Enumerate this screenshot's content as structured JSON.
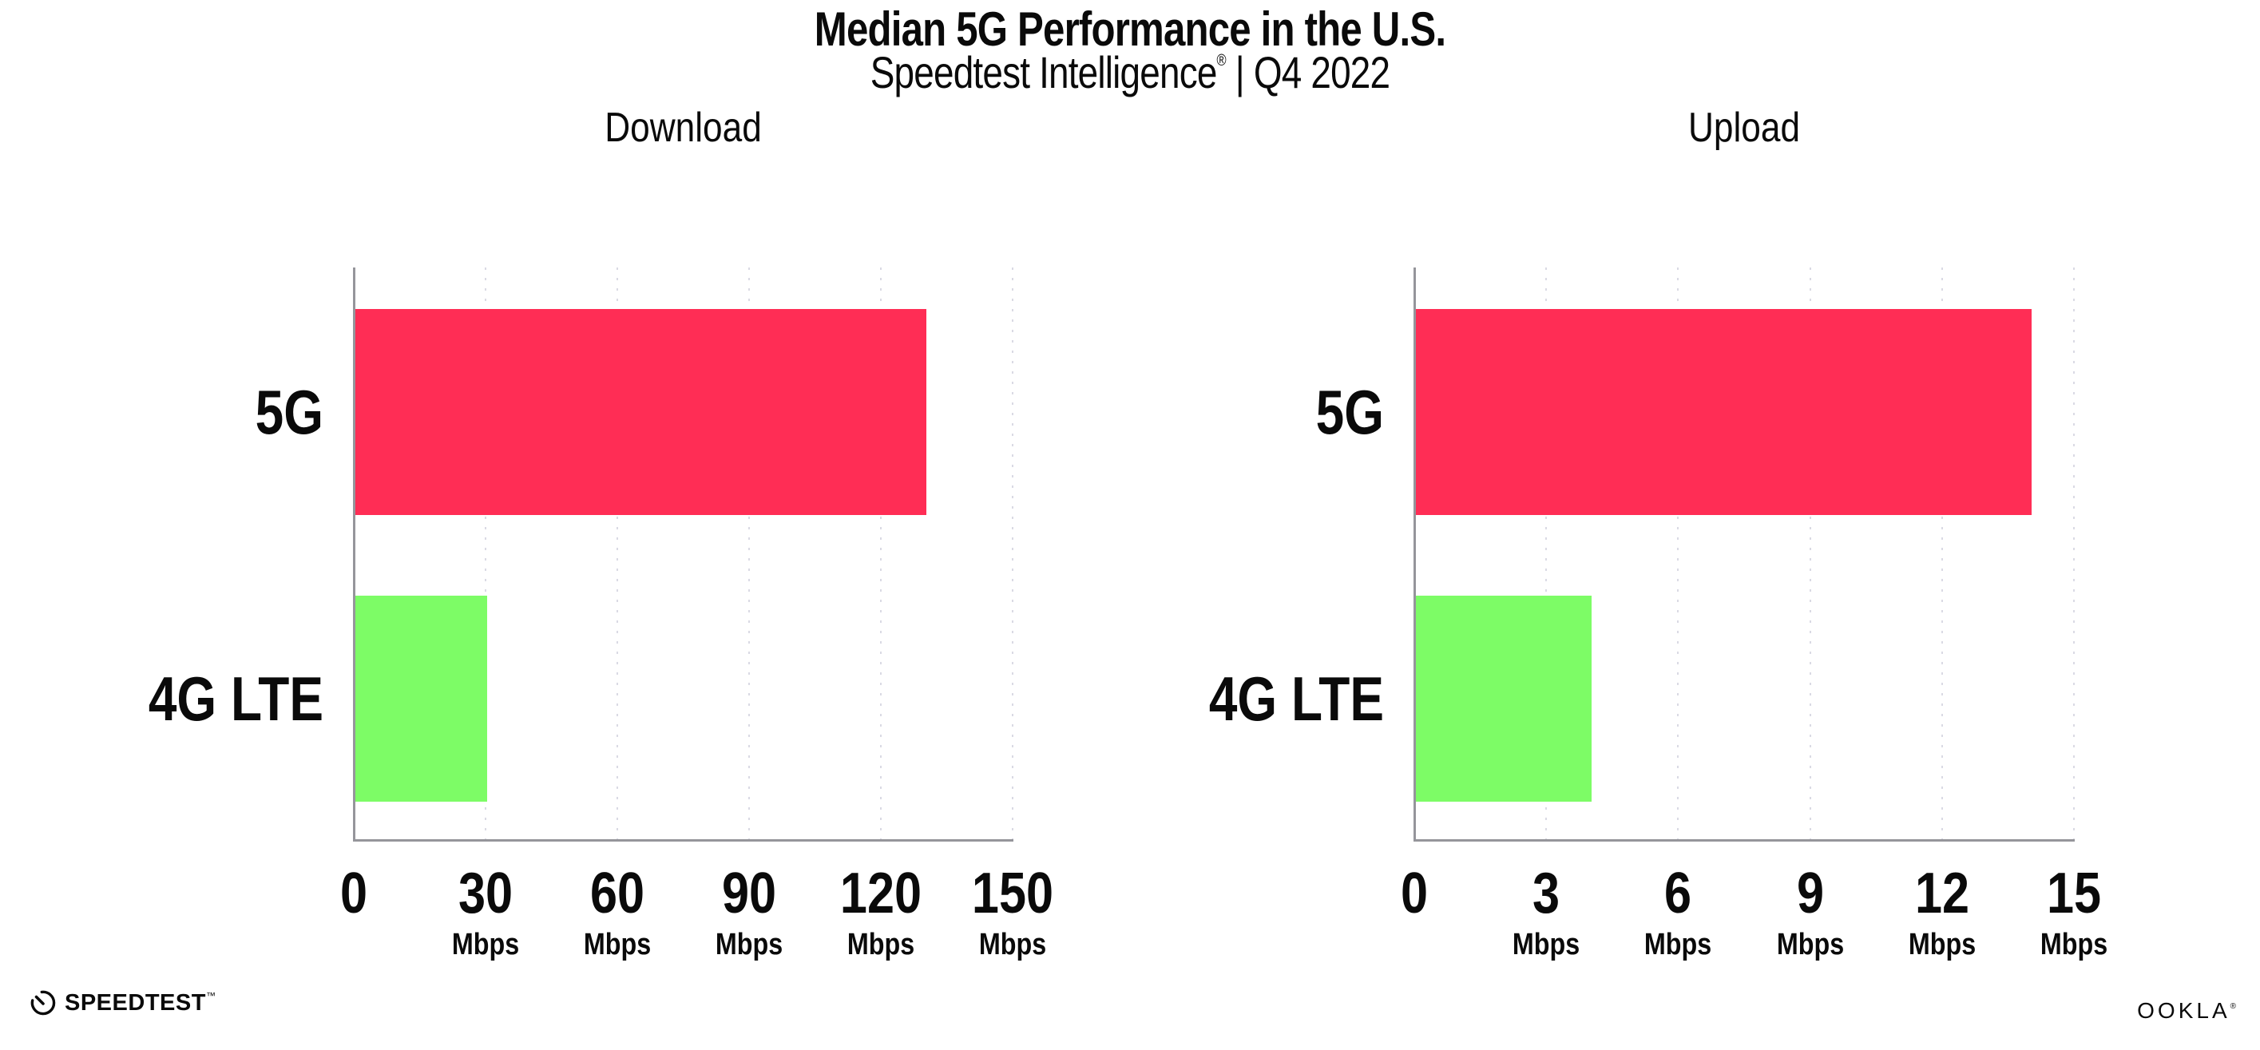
{
  "header": {
    "title": "Median 5G Performance in the U.S.",
    "subtitle_brand": "Speedtest Intelligence",
    "subtitle_reg": "®",
    "subtitle_rest": " | Q4 2022"
  },
  "footer": {
    "speedtest_logo_text": "SPEEDTEST",
    "speedtest_tm": "™",
    "ookla_logo_text": "OOKLA",
    "ookla_reg": "®"
  },
  "colors": {
    "bar_5g": "#FF2D55",
    "bar_4g_lte": "#7DFC66",
    "axis": "#95959b",
    "gridline_dots": "#dadae4",
    "text": "#0a0a0a"
  },
  "chart_data": [
    {
      "type": "bar",
      "orientation": "horizontal",
      "title": "Download",
      "categories": [
        "5G",
        "4G LTE"
      ],
      "values": [
        130,
        30
      ],
      "unit": "Mbps",
      "xlim": [
        0,
        150
      ],
      "xticks": [
        0,
        30,
        60,
        90,
        120,
        150
      ],
      "tick_unit_label": "Mbps",
      "bar_colors": [
        "#FF2D55",
        "#7DFC66"
      ],
      "grid": "dotted-vertical",
      "legend": "none"
    },
    {
      "type": "bar",
      "orientation": "horizontal",
      "title": "Upload",
      "categories": [
        "5G",
        "4G LTE"
      ],
      "values": [
        14,
        4
      ],
      "unit": "Mbps",
      "xlim": [
        0,
        15
      ],
      "xticks": [
        0,
        3,
        6,
        9,
        12,
        15
      ],
      "tick_unit_label": "Mbps",
      "bar_colors": [
        "#FF2D55",
        "#7DFC66"
      ],
      "grid": "dotted-vertical",
      "legend": "none"
    }
  ]
}
